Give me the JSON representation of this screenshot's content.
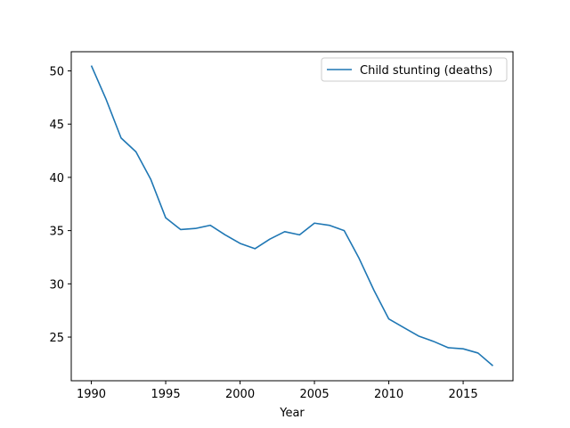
{
  "chart_data": {
    "type": "line",
    "title": "",
    "xlabel": "Year",
    "ylabel": "",
    "xlim": [
      1988.65,
      2018.35
    ],
    "ylim": [
      20.9,
      51.8
    ],
    "xticks": [
      1990,
      1995,
      2000,
      2005,
      2010,
      2015
    ],
    "yticks": [
      25,
      30,
      35,
      40,
      45,
      50
    ],
    "grid": false,
    "legend_position": "top-right",
    "series": [
      {
        "name": "Child stunting (deaths)",
        "color": "#1f77b4",
        "x": [
          1990,
          1991,
          1992,
          1993,
          1994,
          1995,
          1996,
          1997,
          1998,
          1999,
          2000,
          2001,
          2002,
          2003,
          2004,
          2005,
          2006,
          2007,
          2008,
          2009,
          2010,
          2011,
          2012,
          2013,
          2014,
          2015,
          2016,
          2017
        ],
        "y": [
          50.5,
          47.3,
          43.7,
          42.4,
          39.8,
          36.2,
          35.1,
          35.2,
          35.5,
          34.6,
          33.8,
          33.3,
          34.2,
          34.9,
          34.6,
          35.7,
          35.5,
          35.0,
          32.4,
          29.4,
          26.7,
          25.9,
          25.1,
          24.6,
          24.0,
          23.9,
          23.5,
          22.3
        ]
      }
    ]
  }
}
